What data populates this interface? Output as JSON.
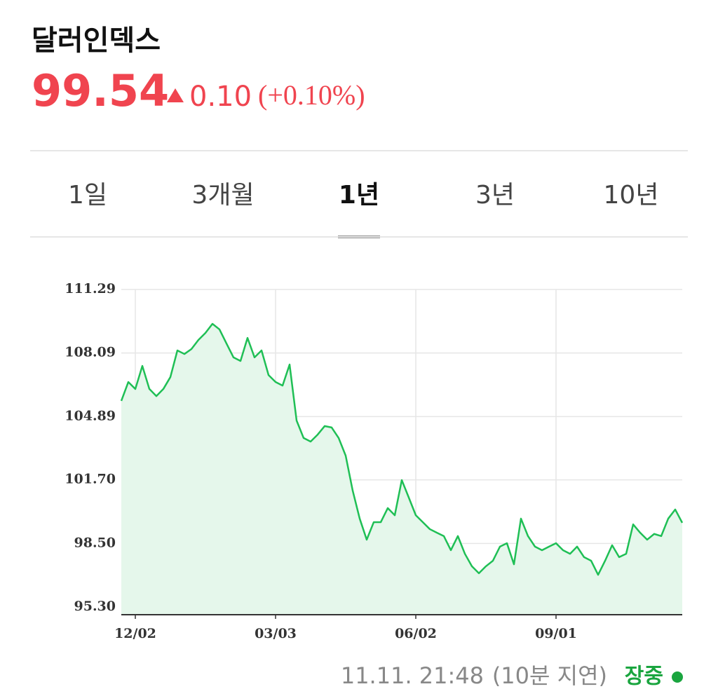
{
  "header": {
    "title": "달러인덱스",
    "price": "99.54",
    "change": "0.10",
    "change_pct": "(+0.10%)"
  },
  "tabs": [
    "1일",
    "3개월",
    "1년",
    "3년",
    "10년"
  ],
  "active_tab": 2,
  "chart_data": {
    "type": "line",
    "color": "#1fbf55",
    "fill_color": "#e5f7eb",
    "grid": true,
    "categories": [
      null,
      null,
      "12/02",
      null,
      null,
      null,
      null,
      null,
      null,
      null,
      null,
      null,
      null,
      null,
      null,
      null,
      null,
      null,
      null,
      null,
      null,
      null,
      "03/03",
      null,
      null,
      null,
      null,
      null,
      null,
      null,
      null,
      null,
      null,
      null,
      null,
      null,
      null,
      null,
      null,
      null,
      null,
      null,
      "06/02",
      null,
      null,
      null,
      null,
      null,
      null,
      null,
      null,
      null,
      null,
      null,
      null,
      null,
      null,
      null,
      null,
      null,
      null,
      null,
      "09/01",
      null,
      null,
      null,
      null,
      null,
      null,
      null,
      null,
      null,
      null,
      null,
      null,
      null,
      null,
      null,
      null,
      null,
      null
    ],
    "values": [
      105.68,
      106.63,
      106.28,
      107.44,
      106.28,
      105.92,
      106.28,
      106.88,
      108.22,
      108.04,
      108.29,
      108.75,
      109.1,
      109.56,
      109.28,
      108.57,
      107.87,
      107.69,
      108.85,
      107.87,
      108.22,
      106.98,
      106.63,
      106.45,
      107.51,
      104.69,
      103.81,
      103.63,
      103.98,
      104.41,
      104.34,
      103.81,
      102.92,
      101.16,
      99.75,
      98.69,
      99.57,
      99.57,
      100.28,
      99.92,
      101.69,
      100.81,
      99.92,
      99.57,
      99.22,
      99.04,
      98.87,
      98.16,
      98.87,
      97.98,
      97.35,
      97.0,
      97.35,
      97.63,
      98.34,
      98.51,
      97.45,
      99.75,
      98.87,
      98.34,
      98.16,
      98.34,
      98.51,
      98.16,
      97.98,
      98.34,
      97.81,
      97.63,
      96.92,
      97.63,
      98.41,
      97.81,
      97.98,
      99.46,
      99.04,
      98.69,
      98.98,
      98.87,
      99.75,
      100.21,
      99.54
    ],
    "ylim": [
      95.3,
      111.29
    ],
    "yticks": [
      {
        "value": 95.3,
        "label": "95.30"
      },
      {
        "value": 98.5,
        "label": "98.50"
      },
      {
        "value": 101.7,
        "label": "101.70"
      },
      104.89,
      108.09,
      111.29
    ]
  },
  "footer": {
    "time": "11.11. 21:48",
    "delay": "(10분 지연)",
    "status": "장중"
  }
}
